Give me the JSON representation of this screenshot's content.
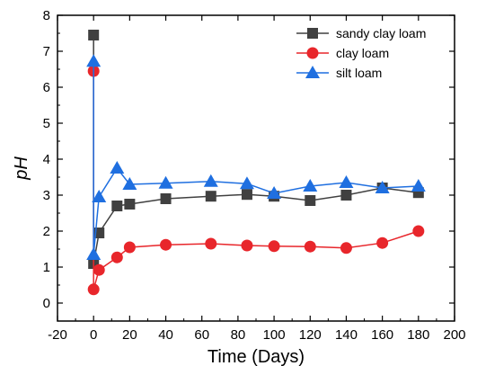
{
  "chart_data": {
    "type": "line",
    "xlabel": "Time (Days)",
    "ylabel": "pH",
    "xlim": [
      -20,
      200
    ],
    "ylim": [
      -0.5,
      8
    ],
    "xticks": [
      -20,
      0,
      20,
      40,
      60,
      80,
      100,
      120,
      140,
      160,
      180,
      200
    ],
    "yticks": [
      0,
      1,
      2,
      3,
      4,
      5,
      6,
      7,
      8
    ],
    "grid": false,
    "legend_position": "top-right",
    "series": [
      {
        "name": "sandy clay loam",
        "color": "#404040",
        "marker": "square",
        "x": [
          0,
          0,
          3,
          13,
          20,
          40,
          65,
          85,
          100,
          120,
          140,
          160,
          180
        ],
        "y": [
          7.45,
          1.1,
          1.95,
          2.7,
          2.75,
          2.9,
          2.97,
          3.02,
          2.97,
          2.85,
          3.0,
          3.2,
          3.07
        ]
      },
      {
        "name": "clay loam",
        "color": "#e8262b",
        "marker": "circle",
        "x": [
          0,
          0,
          3,
          13,
          20,
          40,
          65,
          85,
          100,
          120,
          140,
          160,
          180
        ],
        "y": [
          6.45,
          0.38,
          0.92,
          1.27,
          1.55,
          1.62,
          1.65,
          1.6,
          1.58,
          1.57,
          1.53,
          1.67,
          2.0
        ]
      },
      {
        "name": "silt loam",
        "color": "#1f6fe0",
        "marker": "triangle",
        "x": [
          0,
          0,
          3,
          13,
          20,
          40,
          65,
          85,
          100,
          120,
          140,
          160,
          180
        ],
        "y": [
          6.72,
          1.35,
          2.95,
          3.75,
          3.3,
          3.33,
          3.38,
          3.32,
          3.05,
          3.25,
          3.35,
          3.2,
          3.25
        ]
      }
    ]
  }
}
